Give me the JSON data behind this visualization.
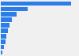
{
  "values": [
    100,
    38,
    22,
    16,
    12,
    10,
    8,
    7,
    4,
    2
  ],
  "bar_color": "#2b7de9",
  "background_color": "#f0f0f0",
  "xlim": [
    0,
    108
  ],
  "bar_height": 0.82
}
